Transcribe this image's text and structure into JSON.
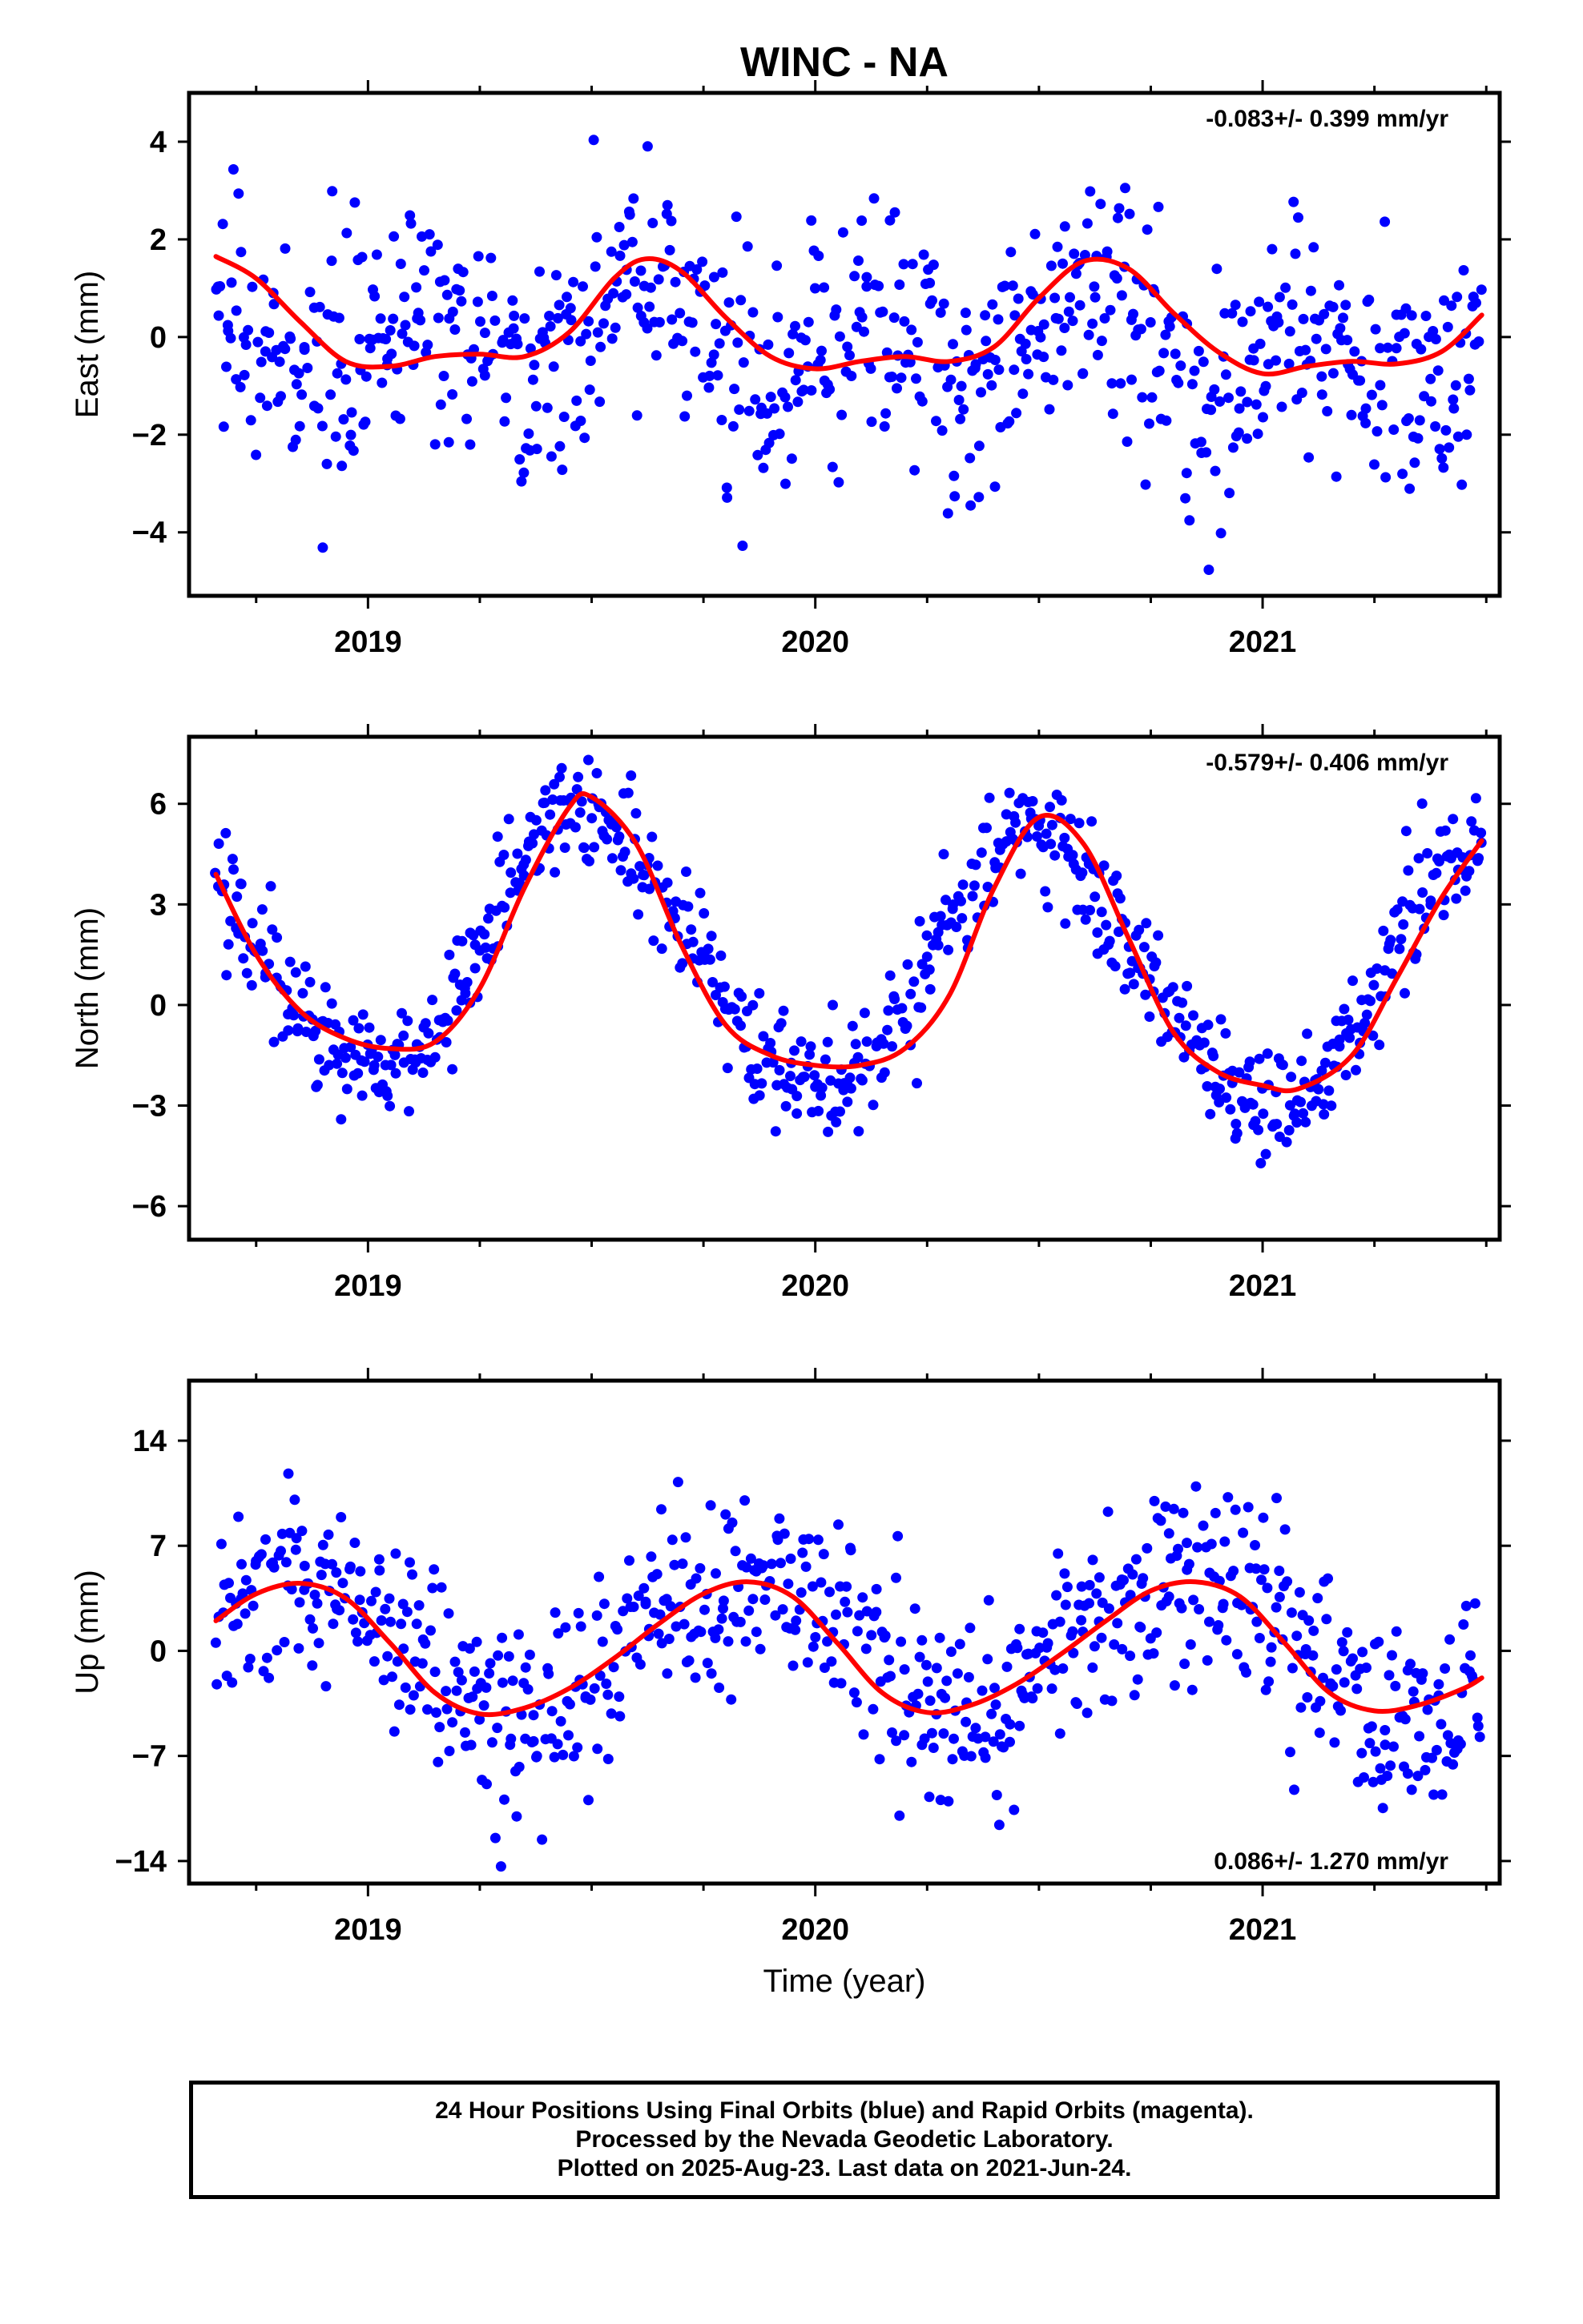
{
  "title": "WINC - NA",
  "x_axis_label": "Time (year)",
  "footer": {
    "line1": "24 Hour Positions Using Final Orbits (blue) and Rapid Orbits (magenta).",
    "line2": "Processed by the Nevada Geodetic Laboratory.",
    "line3": "Plotted on 2025-Aug-23. Last data on 2021-Jun-24."
  },
  "colors": {
    "points": "#0000ff",
    "fit": "#ff0000"
  },
  "chart_data": [
    {
      "type": "scatter",
      "name": "east",
      "ylabel": "East (mm)",
      "rate_text": "-0.083+/- 0.399 mm/yr",
      "rate_position": "top-right",
      "xlim": [
        2018.6,
        2021.53
      ],
      "ylim": [
        -5.3,
        5.0
      ],
      "xticks": [
        2019,
        2020,
        2021
      ],
      "yticks": [
        4,
        2,
        0,
        -2,
        -4
      ],
      "ytick_labels": [
        "4",
        "2",
        "0",
        "−2",
        "−4"
      ],
      "model": {
        "offset": -0.05,
        "trend": -0.083,
        "annual_amp": 0.4,
        "annual_phase": 0.55,
        "semiannual_amp": 0.8,
        "semiannual_phase": 0.62,
        "noise": 1.2
      },
      "fit_x": [
        2018.66,
        2018.75,
        2018.85,
        2018.95,
        2019.05,
        2019.15,
        2019.25,
        2019.35,
        2019.45,
        2019.55,
        2019.62,
        2019.7,
        2019.8,
        2019.9,
        2020.0,
        2020.1,
        2020.2,
        2020.3,
        2020.4,
        2020.5,
        2020.6,
        2020.7,
        2020.8,
        2020.9,
        2021.0,
        2021.1,
        2021.2,
        2021.3,
        2021.4,
        2021.49
      ],
      "fit_y": [
        1.65,
        1.2,
        0.3,
        -0.5,
        -0.6,
        -0.4,
        -0.35,
        -0.4,
        0.1,
        1.2,
        1.6,
        1.35,
        0.4,
        -0.4,
        -0.65,
        -0.5,
        -0.4,
        -0.5,
        -0.2,
        0.8,
        1.55,
        1.4,
        0.5,
        -0.3,
        -0.75,
        -0.6,
        -0.5,
        -0.55,
        -0.3,
        0.45
      ]
    },
    {
      "type": "scatter",
      "name": "north",
      "ylabel": "North (mm)",
      "rate_text": "-0.579+/- 0.406 mm/yr",
      "rate_position": "top-right",
      "xlim": [
        2018.6,
        2021.53
      ],
      "ylim": [
        -7.0,
        8.0
      ],
      "xticks": [
        2019,
        2020,
        2021
      ],
      "yticks": [
        6,
        3,
        0,
        -3,
        -6
      ],
      "ytick_labels": [
        "6",
        "3",
        "0",
        "−3",
        "−6"
      ],
      "model": {
        "offset": 2.0,
        "trend": -0.579,
        "annual_amp": 4.0,
        "annual_phase": 0.5,
        "semiannual_amp": 0.3,
        "semiannual_phase": 0.4,
        "noise": 0.9
      },
      "fit_x": [
        2018.66,
        2018.75,
        2018.85,
        2018.95,
        2019.05,
        2019.15,
        2019.25,
        2019.35,
        2019.45,
        2019.5,
        2019.6,
        2019.7,
        2019.8,
        2019.9,
        2020.0,
        2020.1,
        2020.2,
        2020.3,
        2020.4,
        2020.5,
        2020.6,
        2020.7,
        2020.8,
        2020.9,
        2021.0,
        2021.08,
        2021.2,
        2021.3,
        2021.4,
        2021.49
      ],
      "fit_y": [
        3.9,
        1.5,
        -0.2,
        -1.0,
        -1.3,
        -1.1,
        0.5,
        3.5,
        5.9,
        6.2,
        4.8,
        1.8,
        -0.6,
        -1.5,
        -1.8,
        -1.8,
        -1.3,
        0.3,
        3.5,
        5.6,
        4.8,
        2.0,
        -0.8,
        -2.0,
        -2.4,
        -2.5,
        -1.5,
        0.8,
        3.2,
        4.9
      ]
    },
    {
      "type": "scatter",
      "name": "up",
      "ylabel": "Up (mm)",
      "rate_text": "0.086+/- 1.270 mm/yr",
      "rate_position": "bottom-right",
      "xlim": [
        2018.6,
        2021.53
      ],
      "ylim": [
        -15.5,
        18.0
      ],
      "xticks": [
        2019,
        2020,
        2021
      ],
      "yticks": [
        14,
        7,
        0,
        -7,
        -14
      ],
      "ytick_labels": [
        "14",
        "7",
        "0",
        "−7",
        "−14"
      ],
      "model": {
        "offset": 0.2,
        "trend": 0.086,
        "annual_amp": 4.5,
        "annual_phase": 0.84,
        "semiannual_amp": 0.6,
        "semiannual_phase": 0.1,
        "noise": 3.2
      },
      "fit_x": [
        2018.66,
        2018.75,
        2018.85,
        2018.95,
        2019.05,
        2019.15,
        2019.25,
        2019.35,
        2019.45,
        2019.55,
        2019.65,
        2019.75,
        2019.85,
        2019.95,
        2020.05,
        2020.15,
        2020.25,
        2020.35,
        2020.45,
        2020.55,
        2020.65,
        2020.75,
        2020.85,
        2020.95,
        2021.05,
        2021.15,
        2021.25,
        2021.35,
        2021.45,
        2021.49
      ],
      "fit_y": [
        2.0,
        3.8,
        4.5,
        3.5,
        0.5,
        -2.8,
        -4.2,
        -3.8,
        -2.5,
        -0.5,
        1.8,
        3.8,
        4.6,
        3.6,
        0.5,
        -2.8,
        -4.1,
        -3.6,
        -2.2,
        -0.2,
        2.0,
        4.0,
        4.6,
        3.6,
        0.5,
        -2.8,
        -4.0,
        -3.6,
        -2.5,
        -1.8
      ]
    }
  ]
}
